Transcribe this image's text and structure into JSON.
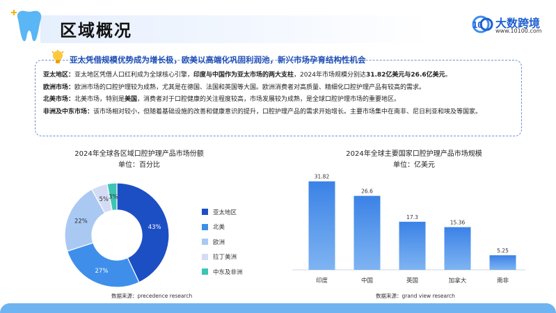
{
  "header": {
    "title": "区域概况",
    "logo_name": "大数跨境",
    "logo_url": "www.10100.com",
    "logo_mark": "10"
  },
  "info": {
    "headline": "亚太凭借规模优势成为增长极，欧美以高端化巩固利润池，新兴市场孕育结构性机会",
    "lines": [
      {
        "label": "亚太地区：",
        "segments": [
          {
            "text": "亚太地区凭借人口红利成为全球核心引擎，",
            "bold": false
          },
          {
            "text": "印度与中国作为亚太市场的两大支柱",
            "bold": true
          },
          {
            "text": "，2024年市场规模分别达",
            "bold": false
          },
          {
            "text": "31.82亿美元与26.6亿美元",
            "bold": true
          },
          {
            "text": "。",
            "bold": false
          }
        ]
      },
      {
        "label": "欧洲市场：",
        "segments": [
          {
            "text": "欧洲市场的口腔护理较为成熟，尤其是在德国、法国和英国等大国。欧洲消费者对高质量、精细化口腔护理产品有较高的需求。",
            "bold": false
          }
        ]
      },
      {
        "label": "北美市场：",
        "segments": [
          {
            "text": "北美市场，特别是",
            "bold": false
          },
          {
            "text": "美国",
            "bold": true
          },
          {
            "text": "，消费者对于口腔健康的关注程度较高，市场发展较为成熟，是全球口腔护理市场的重要地区。",
            "bold": false
          }
        ]
      },
      {
        "label": "非洲及中东市场：",
        "segments": [
          {
            "text": "该市场相对较小，但随着基础设施的改善和健康意识的提升，口腔护理产品的需求开始增长。主要市场集中在南非、尼日利亚和埃及等国家。",
            "bold": false
          }
        ]
      }
    ]
  },
  "colors": {
    "accent": "#1f5fd1",
    "box_border": "#6b8fd4",
    "footer": "#6fb3f0"
  },
  "chart_data": [
    {
      "type": "pie",
      "title": "2024年全球各区域口腔护理产品市场份额",
      "subtitle": "单位：百分比",
      "categories": [
        "亚太地区",
        "北美",
        "欧洲",
        "拉丁美洲",
        "中东及非洲"
      ],
      "values": [
        43,
        27,
        22,
        5,
        3
      ],
      "value_suffix": "%",
      "colors": [
        "#1d4fc4",
        "#3f8fea",
        "#a9c9f3",
        "#d4dcf5",
        "#3ec4b3"
      ],
      "legend": "right",
      "source": "数据来源：precedence research"
    },
    {
      "type": "bar",
      "title": "2024年全球主要国家口腔护理产品市场规模",
      "subtitle": "单位：亿美元",
      "categories": [
        "印度",
        "中国",
        "英国",
        "加拿大",
        "南非"
      ],
      "values": [
        31.82,
        26.6,
        17.3,
        15.36,
        5.25
      ],
      "value_labels": [
        "31.82",
        "26.6",
        "17.3",
        "15.36",
        "5.25"
      ],
      "ylim": [
        0,
        36
      ],
      "source": "数据来源：grand view research"
    }
  ]
}
